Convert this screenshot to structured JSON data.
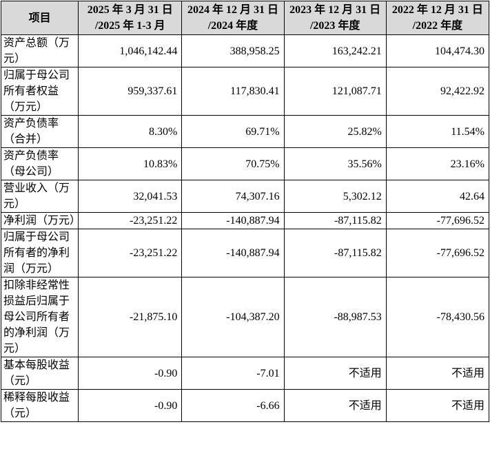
{
  "table": {
    "header": [
      [
        "项目"
      ],
      [
        "2025 年 3 月 31 日",
        "/2025 年 1-3 月"
      ],
      [
        "2024 年 12 月 31 日",
        "/2024 年度"
      ],
      [
        "2023 年 12 月 31 日",
        "/2023 年度"
      ],
      [
        "2022 年 12 月 31 日",
        "/2022 年度"
      ]
    ],
    "rows": [
      [
        "资产总额（万元）",
        "1,046,142.44",
        "388,958.25",
        "163,242.21",
        "104,474.30"
      ],
      [
        "归属于母公司所有者权益（万元）",
        "959,337.61",
        "117,830.41",
        "121,087.71",
        "92,422.92"
      ],
      [
        "资产负债率（合并）",
        "8.30%",
        "69.71%",
        "25.82%",
        "11.54%"
      ],
      [
        "资产负债率（母公司）",
        "10.83%",
        "70.75%",
        "35.56%",
        "23.16%"
      ],
      [
        "营业收入（万元）",
        "32,041.53",
        "74,307.16",
        "5,302.12",
        "42.64"
      ],
      [
        "净利润（万元）",
        "-23,251.22",
        "-140,887.94",
        "-87,115.82",
        "-77,696.52"
      ],
      [
        "归属于母公司所有者的净利润（万元）",
        "-23,251.22",
        "-140,887.94",
        "-87,115.82",
        "-77,696.52"
      ],
      [
        "扣除非经常性损益后归属于母公司所有者的净利润（万元）",
        "-21,875.10",
        "-104,387.20",
        "-88,987.53",
        "-78,430.56"
      ],
      [
        "基本每股收益（元）",
        "-0.90",
        "-7.01",
        "不适用",
        "不适用"
      ],
      [
        "稀释每股收益（元）",
        "-0.90",
        "-6.66",
        "不适用",
        "不适用"
      ]
    ]
  }
}
